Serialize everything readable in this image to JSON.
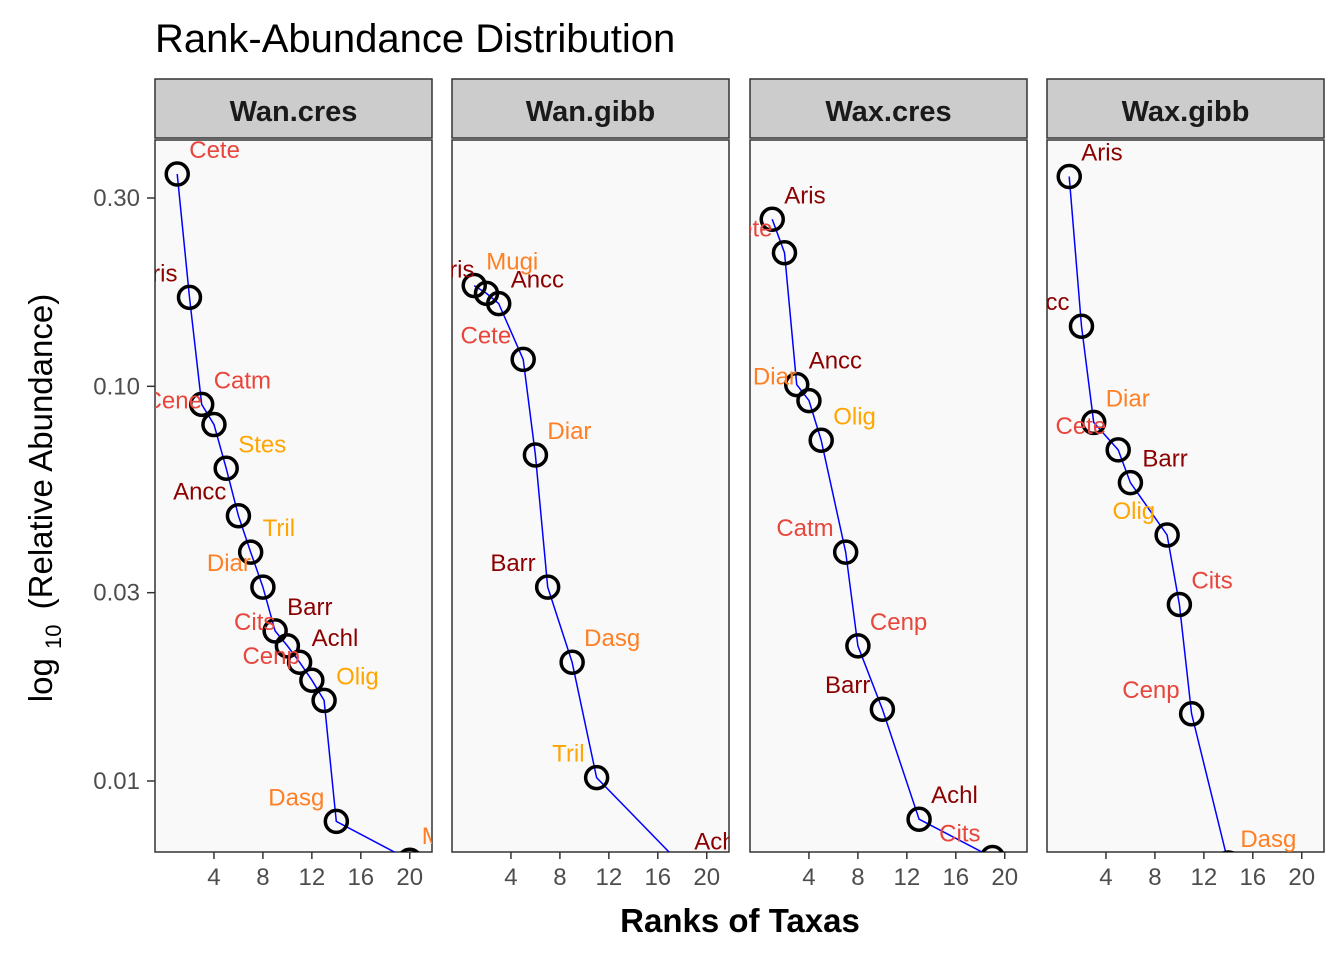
{
  "chart_data": {
    "type": "line",
    "title": "Rank-Abundance Distribution",
    "xlabel": "Ranks of Taxas",
    "ylabel_main": "log",
    "ylabel_sub": "10",
    "ylabel_rest": "(Relative Abundance)",
    "x_scale": "linear",
    "y_scale": "log10",
    "xlim": [
      0,
      21
    ],
    "x_ticks": [
      "4",
      "8",
      "12",
      "16",
      "20"
    ],
    "x_tick_values": [
      4,
      8,
      12,
      16,
      20
    ],
    "y_ticks": [
      "0.30",
      "0.10",
      "0.03",
      "0.01"
    ],
    "y_tick_values": [
      0.3,
      0.1,
      0.03,
      0.01
    ],
    "colors": {
      "line": "#0000ff",
      "point_stroke": "#000000",
      "panel_bg": "#f9f9f9",
      "strip_bg": "#cccccc",
      "connector": "#a6a6a6",
      "label_dark": "#8b0000",
      "label_red": "#e8463c",
      "label_orange": "#ff7f24",
      "label_amber": "#ffa500"
    },
    "panels": [
      {
        "name": "Wan.cres",
        "points": [
          {
            "x": 1,
            "y": 0.345,
            "label": "Cete",
            "color": "label_red"
          },
          {
            "x": 2,
            "y": 0.168,
            "label": "Aris",
            "color": "label_dark"
          },
          {
            "x": 3,
            "y": 0.09,
            "label": "Catm",
            "color": "label_red"
          },
          {
            "x": 4,
            "y": 0.08,
            "label": "Cene",
            "color": "label_red"
          },
          {
            "x": 5,
            "y": 0.062,
            "label": "Stes",
            "color": "label_amber"
          },
          {
            "x": 6,
            "y": 0.047,
            "label": "Ancc",
            "color": "label_dark"
          },
          {
            "x": 7,
            "y": 0.038,
            "label": "Tril",
            "color": "label_amber"
          },
          {
            "x": 8,
            "y": 0.031,
            "label": "Diar",
            "color": "label_orange"
          },
          {
            "x": 9,
            "y": 0.024,
            "label": "Barr",
            "color": "label_dark"
          },
          {
            "x": 10,
            "y": 0.022,
            "label": "Cits",
            "color": "label_red"
          },
          {
            "x": 11,
            "y": 0.02,
            "label": "Achl",
            "color": "label_dark"
          },
          {
            "x": 12,
            "y": 0.018,
            "label": "Cenp",
            "color": "label_red"
          },
          {
            "x": 13,
            "y": 0.016,
            "label": "Olig",
            "color": "label_amber"
          },
          {
            "x": 14,
            "y": 0.0079,
            "label": "Dasg",
            "color": "label_orange"
          },
          {
            "x": 20,
            "y": 0.0063,
            "label": "Mugi",
            "color": "label_orange"
          }
        ]
      },
      {
        "name": "Wan.gibb",
        "points": [
          {
            "x": 1,
            "y": 0.18,
            "label": "Mugi",
            "color": "label_orange"
          },
          {
            "x": 2,
            "y": 0.172,
            "label": "Aris",
            "color": "label_dark"
          },
          {
            "x": 3,
            "y": 0.162,
            "label": "Ancc",
            "color": "label_dark"
          },
          {
            "x": 5,
            "y": 0.117,
            "label": "Cete",
            "color": "label_red"
          },
          {
            "x": 6,
            "y": 0.067,
            "label": "Diar",
            "color": "label_orange"
          },
          {
            "x": 7,
            "y": 0.031,
            "label": "Barr",
            "color": "label_dark"
          },
          {
            "x": 9,
            "y": 0.02,
            "label": "Dasg",
            "color": "label_orange"
          },
          {
            "x": 11,
            "y": 0.0102,
            "label": "Tril",
            "color": "label_amber"
          },
          {
            "x": 18,
            "y": 0.0061,
            "label": "Achl",
            "color": "label_dark"
          }
        ]
      },
      {
        "name": "Wax.cres",
        "points": [
          {
            "x": 1,
            "y": 0.265,
            "label": "Aris",
            "color": "label_dark"
          },
          {
            "x": 2,
            "y": 0.218,
            "label": "Cete",
            "color": "label_red"
          },
          {
            "x": 3,
            "y": 0.101,
            "label": "Ancc",
            "color": "label_dark"
          },
          {
            "x": 4,
            "y": 0.092,
            "label": "Diar",
            "color": "label_orange"
          },
          {
            "x": 5,
            "y": 0.073,
            "label": "Olig",
            "color": "label_amber"
          },
          {
            "x": 7,
            "y": 0.038,
            "label": "Catm",
            "color": "label_red"
          },
          {
            "x": 8,
            "y": 0.022,
            "label": "Cenp",
            "color": "label_red"
          },
          {
            "x": 10,
            "y": 0.0152,
            "label": "Barr",
            "color": "label_dark"
          },
          {
            "x": 13,
            "y": 0.008,
            "label": "Achl",
            "color": "label_dark"
          },
          {
            "x": 19,
            "y": 0.0064,
            "label": "Cits",
            "color": "label_red"
          }
        ]
      },
      {
        "name": "Wax.gibb",
        "points": [
          {
            "x": 1,
            "y": 0.34,
            "label": "Aris",
            "color": "label_dark"
          },
          {
            "x": 2,
            "y": 0.142,
            "label": "Ancc",
            "color": "label_dark"
          },
          {
            "x": 3,
            "y": 0.081,
            "label": "Diar",
            "color": "label_orange"
          },
          {
            "x": 5,
            "y": 0.069,
            "label": "Cete",
            "color": "label_red"
          },
          {
            "x": 6,
            "y": 0.057,
            "label": "Barr",
            "color": "label_dark"
          },
          {
            "x": 9,
            "y": 0.042,
            "label": "Olig",
            "color": "label_amber"
          },
          {
            "x": 10,
            "y": 0.028,
            "label": "Cits",
            "color": "label_red"
          },
          {
            "x": 11,
            "y": 0.0148,
            "label": "Cenp",
            "color": "label_red"
          },
          {
            "x": 14,
            "y": 0.0062,
            "label": "Dasg",
            "color": "label_orange"
          }
        ]
      }
    ]
  }
}
